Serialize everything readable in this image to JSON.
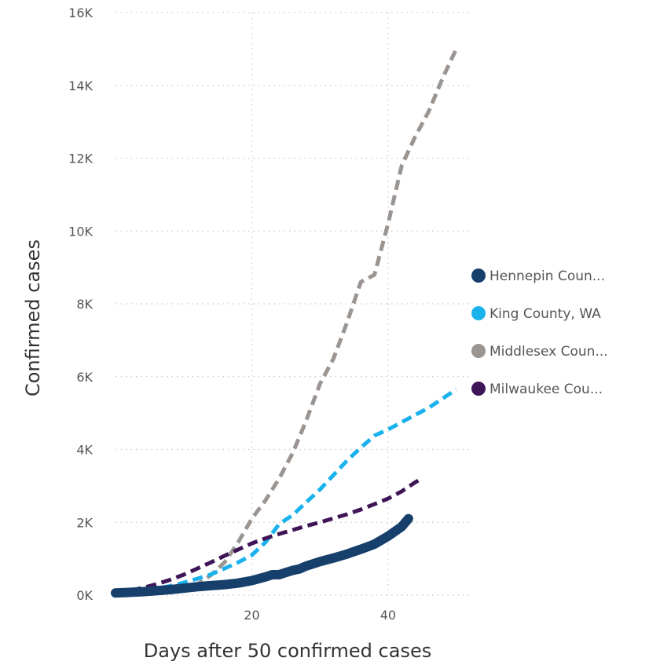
{
  "chart_data": {
    "type": "line",
    "title": "",
    "xlabel": "Days after 50 confirmed cases",
    "ylabel": "Confirmed cases",
    "xlim": [
      0,
      52
    ],
    "ylim": [
      0,
      16000
    ],
    "x_ticks": [
      {
        "value": 20,
        "label": "20"
      },
      {
        "value": 40,
        "label": "40"
      }
    ],
    "y_ticks": [
      {
        "value": 0,
        "label": "0K"
      },
      {
        "value": 2000,
        "label": "2K"
      },
      {
        "value": 4000,
        "label": "4K"
      },
      {
        "value": 6000,
        "label": "6K"
      },
      {
        "value": 8000,
        "label": "8K"
      },
      {
        "value": 10000,
        "label": "10K"
      },
      {
        "value": 12000,
        "label": "12K"
      },
      {
        "value": 14000,
        "label": "14K"
      },
      {
        "value": 16000,
        "label": "16K"
      }
    ],
    "grid": true,
    "legend_position": "right",
    "series": [
      {
        "name": "Hennepin Coun...",
        "color": "#163f6b",
        "style": "solid",
        "x": [
          0,
          2,
          4,
          6,
          8,
          10,
          12,
          14,
          16,
          18,
          20,
          22,
          23,
          24,
          25,
          26,
          27,
          28,
          30,
          32,
          34,
          36,
          38,
          40,
          42,
          43
        ],
        "y": [
          60,
          75,
          95,
          120,
          150,
          190,
          230,
          260,
          290,
          330,
          400,
          500,
          560,
          560,
          620,
          680,
          720,
          800,
          920,
          1020,
          1130,
          1260,
          1400,
          1620,
          1880,
          2100
        ]
      },
      {
        "name": "King County, WA",
        "color": "#1ab2ed",
        "style": "dashed",
        "x": [
          0,
          2,
          4,
          6,
          8,
          10,
          12,
          14,
          16,
          18,
          20,
          22,
          24,
          26,
          28,
          30,
          32,
          34,
          36,
          38,
          40,
          42,
          44,
          46,
          48,
          50
        ],
        "y": [
          60,
          90,
          130,
          180,
          250,
          340,
          450,
          570,
          730,
          900,
          1100,
          1450,
          1950,
          2200,
          2550,
          2900,
          3300,
          3700,
          4050,
          4380,
          4550,
          4750,
          4950,
          5150,
          5400,
          5650
        ]
      },
      {
        "name": "Middlesex Coun...",
        "color": "#9b9592",
        "style": "dashed",
        "x": [
          0,
          4,
          8,
          12,
          14,
          16,
          18,
          20,
          22,
          24,
          26,
          28,
          30,
          32,
          34,
          36,
          38,
          40,
          42,
          44,
          46,
          48,
          50
        ],
        "y": [
          60,
          80,
          130,
          300,
          550,
          900,
          1450,
          2100,
          2600,
          3200,
          3900,
          4800,
          5800,
          6500,
          7500,
          8600,
          8800,
          10200,
          11800,
          12600,
          13300,
          14200,
          15000
        ]
      },
      {
        "name": "Milwaukee Cou...",
        "color": "#3e1556",
        "style": "dashed",
        "x": [
          0,
          2,
          4,
          6,
          8,
          10,
          12,
          14,
          16,
          18,
          20,
          22,
          24,
          26,
          28,
          30,
          32,
          34,
          36,
          38,
          40,
          42,
          44,
          45
        ],
        "y": [
          60,
          120,
          200,
          300,
          420,
          560,
          730,
          900,
          1080,
          1250,
          1420,
          1560,
          1680,
          1790,
          1900,
          2000,
          2110,
          2220,
          2350,
          2500,
          2650,
          2850,
          3100,
          3200
        ]
      }
    ]
  }
}
